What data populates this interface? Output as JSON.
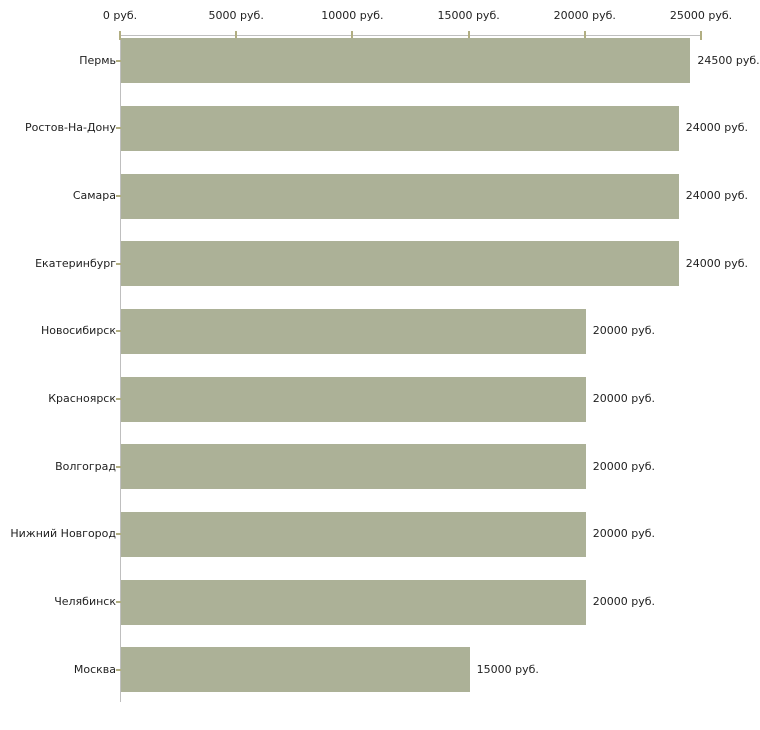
{
  "chart_data": {
    "type": "bar",
    "orientation": "horizontal",
    "title": "",
    "xlabel": "",
    "ylabel": "",
    "categories": [
      "Пермь",
      "Ростов-На-Дону",
      "Самара",
      "Екатеринбург",
      "Новосибирск",
      "Красноярск",
      "Волгоград",
      "Нижний Новгород",
      "Челябинск",
      "Москва"
    ],
    "values": [
      24500,
      24000,
      24000,
      24000,
      20000,
      20000,
      20000,
      20000,
      20000,
      15000
    ],
    "value_labels": [
      "24500 руб.",
      "24000 руб.",
      "24000 руб.",
      "24000 руб.",
      "20000 руб.",
      "20000 руб.",
      "20000 руб.",
      "20000 руб.",
      "20000 руб.",
      "15000 руб."
    ],
    "x_axis": {
      "position": "top",
      "min": 0,
      "max": 25000,
      "tick_step": 5000,
      "ticks": [
        {
          "value": 0,
          "label": "0 руб."
        },
        {
          "value": 5000,
          "label": "5000 руб."
        },
        {
          "value": 10000,
          "label": "10000 руб."
        },
        {
          "value": 15000,
          "label": "15000 руб."
        },
        {
          "value": 20000,
          "label": "20000 руб."
        },
        {
          "value": 25000,
          "label": "25000 руб."
        }
      ]
    },
    "grid": false,
    "legend": false
  },
  "colors": {
    "bar_fill": "#acb197",
    "axis_line": "#bfbfbf",
    "tick_mark": "#b1ae82",
    "label_text": "#1f1f1f",
    "background": "#ffffff"
  }
}
